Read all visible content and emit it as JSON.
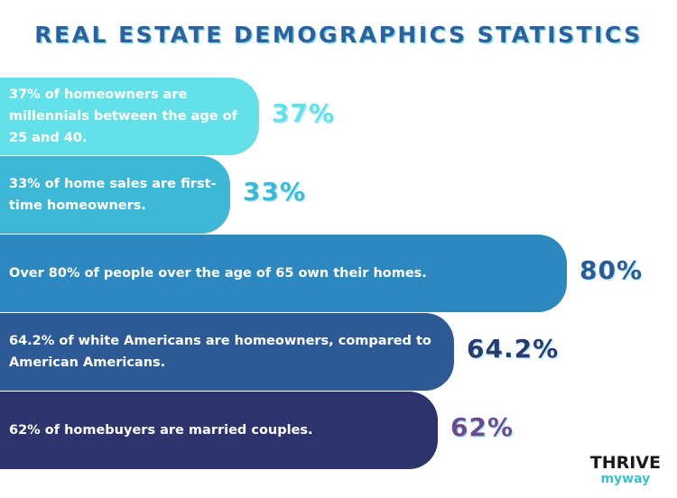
{
  "title": "REAL ESTATE DEMOGRAPHICS STATISTICS",
  "chart_data": {
    "type": "bar",
    "orientation": "horizontal",
    "title": "REAL ESTATE DEMOGRAPHICS STATISTICS",
    "categories": [
      "37% of homeowners are millennials between the age of 25 and 40.",
      "33% of home sales are first-time homeowners.",
      "Over 80% of people over the age of 65 own their homes.",
      "64.2% of white Americans are homeowners, compared to American Americans.",
      "62% of homebuyers are married couples."
    ],
    "values": [
      37,
      33,
      80,
      64.2,
      62
    ],
    "value_labels": [
      "37%",
      "33%",
      "80%",
      "64.2%",
      "62%"
    ],
    "bar_colors": [
      "#64e0e8",
      "#3eb7d6",
      "#2d88bf",
      "#2d5a94",
      "#2d336d"
    ],
    "label_colors": [
      "#64e0e8",
      "#3eb7d6",
      "#2d5a94",
      "#283a6e",
      "#6b4b8c"
    ],
    "grid": false,
    "legend": "none"
  },
  "logo": {
    "top": "THRIVE",
    "bottom": "myway"
  }
}
